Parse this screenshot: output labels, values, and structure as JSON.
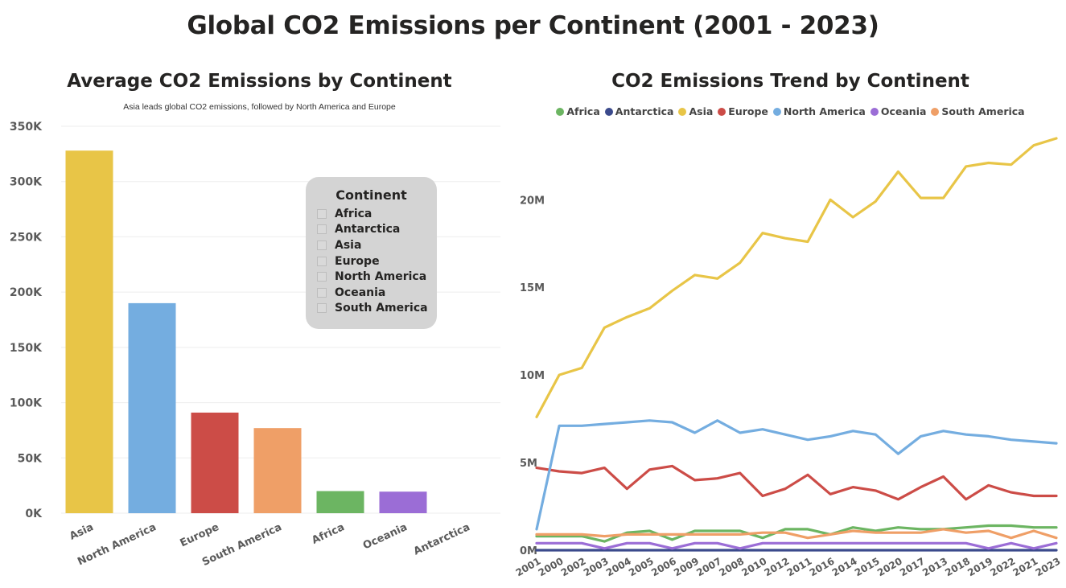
{
  "title": "Global CO2 Emissions per Continent (2001 - 2023)",
  "colors": {
    "Asia": "#e8c547",
    "North America": "#74ade0",
    "Europe": "#cc4c47",
    "South America": "#ef9f67",
    "Africa": "#6cb562",
    "Oceania": "#9b6dd6",
    "Antarctica": "#3b4a8c",
    "gridline": "#ededed"
  },
  "slicer": {
    "title": "Continent",
    "items": [
      "Africa",
      "Antarctica",
      "Asia",
      "Europe",
      "North America",
      "Oceania",
      "South America"
    ]
  },
  "chart_data": [
    {
      "type": "bar",
      "title": "Average CO2 Emissions by Continent",
      "subtitle": "Asia leads global CO2 emissions, followed by North America and Europe",
      "categories": [
        "Asia",
        "North America",
        "Europe",
        "South America",
        "Africa",
        "Oceania",
        "Antarctica"
      ],
      "values": [
        328000,
        190000,
        91000,
        77000,
        20000,
        19500,
        0
      ],
      "ylim": [
        0,
        350000
      ],
      "yticks": [
        "0K",
        "50K",
        "100K",
        "150K",
        "200K",
        "250K",
        "300K",
        "350K"
      ],
      "grid": true
    },
    {
      "type": "line",
      "title": "CO2 Emissions Trend by Continent",
      "legend_position": "top-center",
      "x": [
        "2001",
        "2000",
        "2002",
        "2003",
        "2004",
        "2005",
        "2006",
        "2009",
        "2007",
        "2008",
        "2010",
        "2012",
        "2011",
        "2016",
        "2014",
        "2015",
        "2020",
        "2017",
        "2013",
        "2018",
        "2019",
        "2022",
        "2021",
        "2023"
      ],
      "ylim": [
        0,
        23500000
      ],
      "yticks": [
        "0M",
        "5M",
        "10M",
        "15M",
        "20M"
      ],
      "grid": false,
      "series": [
        {
          "name": "Africa",
          "values": [
            800000,
            800000,
            800000,
            500000,
            1000000,
            1100000,
            600000,
            1100000,
            1100000,
            1100000,
            700000,
            1200000,
            1200000,
            900000,
            1300000,
            1100000,
            1300000,
            1200000,
            1200000,
            1300000,
            1400000,
            1400000,
            1300000,
            1300000
          ]
        },
        {
          "name": "Antarctica",
          "values": [
            0,
            0,
            0,
            0,
            0,
            0,
            0,
            0,
            0,
            0,
            0,
            0,
            0,
            0,
            0,
            0,
            0,
            0,
            0,
            0,
            0,
            0,
            0,
            0
          ]
        },
        {
          "name": "Asia",
          "values": [
            7600000,
            10000000,
            10400000,
            12700000,
            13300000,
            13800000,
            14800000,
            15700000,
            15500000,
            16400000,
            18100000,
            17800000,
            17600000,
            20000000,
            19000000,
            19900000,
            21600000,
            20100000,
            20100000,
            21900000,
            22100000,
            22000000,
            23100000,
            23500000
          ]
        },
        {
          "name": "Europe",
          "values": [
            4700000,
            4500000,
            4400000,
            4700000,
            3500000,
            4600000,
            4800000,
            4000000,
            4100000,
            4400000,
            3100000,
            3500000,
            4300000,
            3200000,
            3600000,
            3400000,
            2900000,
            3600000,
            4200000,
            2900000,
            3700000,
            3300000,
            3100000,
            3100000
          ]
        },
        {
          "name": "North America",
          "values": [
            1200000,
            7100000,
            7100000,
            7200000,
            7300000,
            7400000,
            7300000,
            6700000,
            7400000,
            6700000,
            6900000,
            6600000,
            6300000,
            6500000,
            6800000,
            6600000,
            5500000,
            6500000,
            6800000,
            6600000,
            6500000,
            6300000,
            6200000,
            6100000
          ]
        },
        {
          "name": "Oceania",
          "values": [
            400000,
            400000,
            400000,
            100000,
            400000,
            400000,
            100000,
            400000,
            400000,
            100000,
            400000,
            400000,
            400000,
            400000,
            400000,
            400000,
            400000,
            400000,
            400000,
            400000,
            100000,
            400000,
            100000,
            400000
          ]
        },
        {
          "name": "South America",
          "values": [
            900000,
            900000,
            900000,
            800000,
            900000,
            900000,
            900000,
            900000,
            900000,
            900000,
            1000000,
            1000000,
            700000,
            900000,
            1100000,
            1000000,
            1000000,
            1000000,
            1200000,
            1000000,
            1100000,
            700000,
            1100000,
            700000
          ]
        }
      ]
    }
  ]
}
